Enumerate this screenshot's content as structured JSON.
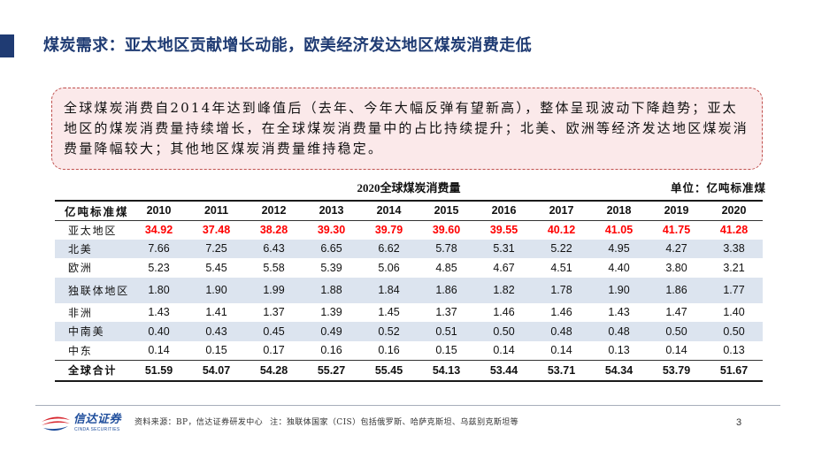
{
  "slide": {
    "title": "煤炭需求：亚太地区贡献增长动能，欧美经济发达地区煤炭消费走低",
    "page_number": "3"
  },
  "callout": {
    "lines": [
      "全球煤炭消费自2014年达到峰值后（去年、今年大幅反弹有望新高），整体呈现波动下降趋势；亚太",
      "地区的煤炭消费量持续增长，在全球煤炭消费量中的占比持续提升；北美、欧洲等经济发达地区煤炭消",
      "费量降幅较大；其他地区煤炭消费量维持稳定。"
    ]
  },
  "chart_data": {
    "type": "table",
    "title": "2020全球煤炭消费量",
    "unit": "单位：亿吨标准煤",
    "header_label": "亿吨标准煤",
    "categories": [
      "2010",
      "2011",
      "2012",
      "2013",
      "2014",
      "2015",
      "2016",
      "2017",
      "2018",
      "2019",
      "2020"
    ],
    "series": [
      {
        "name": "亚太地区",
        "highlight": true,
        "values": [
          "34.92",
          "37.48",
          "38.28",
          "39.30",
          "39.79",
          "39.60",
          "39.55",
          "40.12",
          "41.05",
          "41.75",
          "41.28"
        ]
      },
      {
        "name": "北美",
        "values": [
          "7.66",
          "7.25",
          "6.43",
          "6.65",
          "6.62",
          "5.78",
          "5.31",
          "5.22",
          "4.95",
          "4.27",
          "3.38"
        ]
      },
      {
        "name": "欧洲",
        "values": [
          "5.23",
          "5.45",
          "5.58",
          "5.39",
          "5.06",
          "4.85",
          "4.67",
          "4.51",
          "4.40",
          "3.80",
          "3.21"
        ]
      },
      {
        "name": "独联体地区",
        "values": [
          "1.80",
          "1.90",
          "1.99",
          "1.88",
          "1.84",
          "1.86",
          "1.82",
          "1.78",
          "1.90",
          "1.86",
          "1.77"
        ]
      },
      {
        "name": "非洲",
        "values": [
          "1.43",
          "1.41",
          "1.37",
          "1.39",
          "1.45",
          "1.37",
          "1.46",
          "1.46",
          "1.43",
          "1.47",
          "1.40"
        ]
      },
      {
        "name": "中南美",
        "values": [
          "0.40",
          "0.43",
          "0.45",
          "0.49",
          "0.52",
          "0.51",
          "0.50",
          "0.48",
          "0.48",
          "0.50",
          "0.50"
        ]
      },
      {
        "name": "中东",
        "values": [
          "0.14",
          "0.15",
          "0.17",
          "0.16",
          "0.16",
          "0.15",
          "0.14",
          "0.14",
          "0.13",
          "0.14",
          "0.13"
        ]
      },
      {
        "name": "全球合计",
        "is_total": true,
        "values": [
          "51.59",
          "54.07",
          "54.28",
          "55.27",
          "55.45",
          "54.13",
          "53.44",
          "53.71",
          "54.34",
          "53.79",
          "51.67"
        ]
      }
    ]
  },
  "footer": {
    "source": "资料来源：BP，信达证券研发中心",
    "note": "注：独联体国家（CIS）包括俄罗斯、哈萨克斯坦、乌兹别克斯坦等"
  },
  "logo": {
    "name": "信达证券",
    "name_en": "CINDA SECURITIES",
    "icon": "cinda-swirl-logo"
  },
  "colors": {
    "title": "#1f3b73",
    "highlight": "#ff0000",
    "callout_border": "#c0504d",
    "callout_fill": "#fbe9ea",
    "row_shade": "#dce4ef",
    "logo_blue": "#1f4e9c",
    "logo_red": "#d7262e"
  }
}
